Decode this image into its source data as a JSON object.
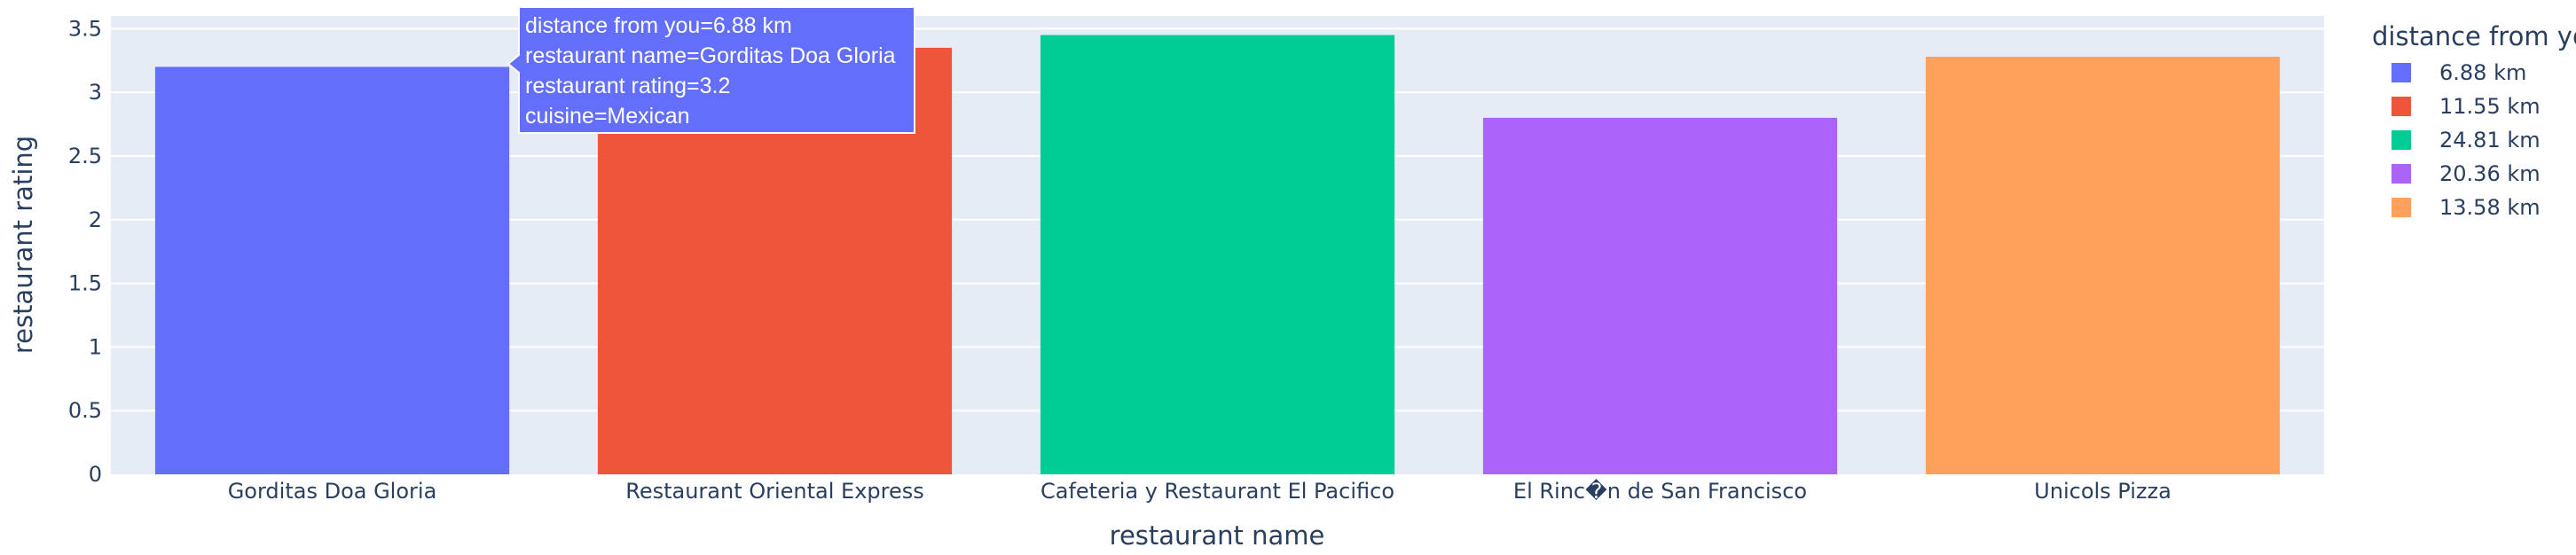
{
  "chart_data": {
    "type": "bar",
    "xlabel": "restaurant name",
    "ylabel": "restaurant rating",
    "ylim": [
      0,
      3.6
    ],
    "yticks": [
      0,
      0.5,
      1,
      1.5,
      2,
      2.5,
      3,
      3.5
    ],
    "ytick_labels": [
      "0",
      "0.5",
      "1",
      "1.5",
      "2",
      "2.5",
      "3",
      "3.5"
    ],
    "grid": true,
    "legend": {
      "title": "distance from yo",
      "placement": "top-right"
    },
    "categories": [
      "Gorditas Doa Gloria",
      "Restaurant Oriental Express",
      "Cafeteria y Restaurant El Pacifico",
      "El Rinc�n de San Francisco",
      "Unicols Pizza"
    ],
    "series": [
      {
        "name": "6.88 km",
        "color": "#636efa",
        "values": [
          3.2,
          null,
          null,
          null,
          null
        ]
      },
      {
        "name": "11.55 km",
        "color": "#ef553b",
        "values": [
          null,
          3.35,
          null,
          null,
          null
        ]
      },
      {
        "name": "24.81 km",
        "color": "#00cc96",
        "values": [
          null,
          null,
          3.45,
          null,
          null
        ]
      },
      {
        "name": "20.36 km",
        "color": "#ab63fa",
        "values": [
          null,
          null,
          null,
          2.8,
          null
        ]
      },
      {
        "name": "13.58 km",
        "color": "#ffa15a",
        "values": [
          null,
          null,
          null,
          null,
          3.28
        ]
      }
    ],
    "hover": {
      "lines": [
        "distance from you=6.88 km",
        "restaurant name=Gorditas Doa Gloria",
        "restaurant rating=3.2",
        "cuisine=Mexican"
      ],
      "color": "#636efa"
    }
  }
}
